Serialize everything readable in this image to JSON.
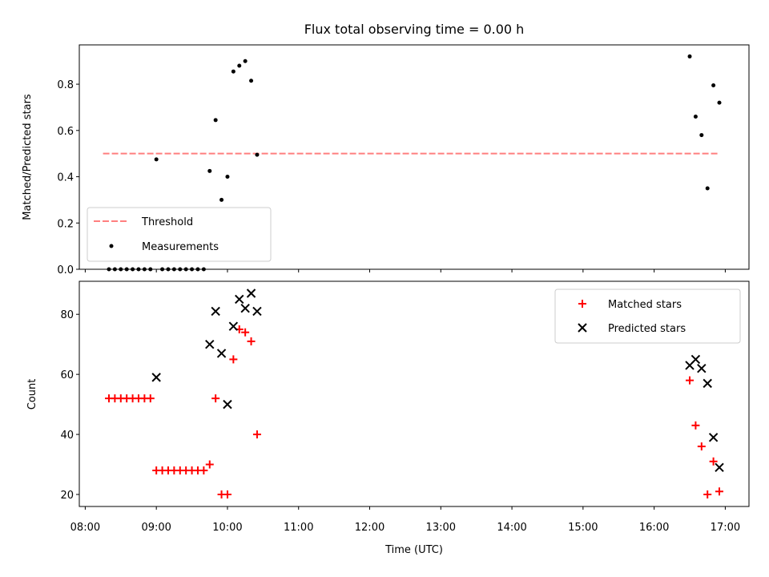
{
  "chart_data": [
    {
      "type": "scatter",
      "title": "Flux total observing time = 0.00 h",
      "xlabel": "",
      "ylabel": "Matched/Predicted stars",
      "xlim": [
        "07:55",
        "17:20"
      ],
      "ylim": [
        0,
        0.97
      ],
      "yticks": [
        0.0,
        0.2,
        0.4,
        0.6,
        0.8
      ],
      "ytick_labels": [
        "0.0",
        "0.2",
        "0.4",
        "0.6",
        "0.8"
      ],
      "grid": false,
      "legend_position": "lower-left",
      "threshold": {
        "name": "Threshold",
        "y": 0.5,
        "x_range": [
          "08:15",
          "16:55"
        ],
        "color": "#ff7f7f",
        "style": "dashed"
      },
      "series": [
        {
          "name": "Measurements",
          "color": "#000000",
          "marker": "dot",
          "points": [
            [
              "08:20",
              0
            ],
            [
              "08:25",
              0
            ],
            [
              "08:30",
              0
            ],
            [
              "08:35",
              0
            ],
            [
              "08:40",
              0
            ],
            [
              "08:45",
              0
            ],
            [
              "08:50",
              0
            ],
            [
              "08:55",
              0
            ],
            [
              "09:00",
              0.475
            ],
            [
              "09:05",
              0
            ],
            [
              "09:10",
              0
            ],
            [
              "09:15",
              0
            ],
            [
              "09:20",
              0
            ],
            [
              "09:25",
              0
            ],
            [
              "09:30",
              0
            ],
            [
              "09:35",
              0
            ],
            [
              "09:40",
              0
            ],
            [
              "09:45",
              0.425
            ],
            [
              "09:50",
              0.645
            ],
            [
              "09:55",
              0.3
            ],
            [
              "10:00",
              0.4
            ],
            [
              "10:05",
              0.855
            ],
            [
              "10:10",
              0.88
            ],
            [
              "10:15",
              0.9
            ],
            [
              "10:20",
              0.815
            ],
            [
              "10:25",
              0.495
            ],
            [
              "16:30",
              0.92
            ],
            [
              "16:35",
              0.66
            ],
            [
              "16:40",
              0.58
            ],
            [
              "16:45",
              0.35
            ],
            [
              "16:50",
              0.795
            ],
            [
              "16:55",
              0.72
            ]
          ]
        }
      ]
    },
    {
      "type": "scatter",
      "title": "",
      "xlabel": "Time (UTC)",
      "ylabel": "Count",
      "xlim": [
        "07:55",
        "17:20"
      ],
      "ylim": [
        16,
        91
      ],
      "yticks": [
        20,
        40,
        60,
        80
      ],
      "xticks": [
        "08:00",
        "09:00",
        "10:00",
        "11:00",
        "12:00",
        "13:00",
        "14:00",
        "15:00",
        "16:00",
        "17:00"
      ],
      "grid": false,
      "legend_position": "upper-right",
      "series": [
        {
          "name": "Matched stars",
          "color": "#ff0000",
          "marker": "plus",
          "points": [
            [
              "08:20",
              52
            ],
            [
              "08:25",
              52
            ],
            [
              "08:30",
              52
            ],
            [
              "08:35",
              52
            ],
            [
              "08:40",
              52
            ],
            [
              "08:45",
              52
            ],
            [
              "08:50",
              52
            ],
            [
              "08:55",
              52
            ],
            [
              "09:00",
              28
            ],
            [
              "09:05",
              28
            ],
            [
              "09:10",
              28
            ],
            [
              "09:15",
              28
            ],
            [
              "09:20",
              28
            ],
            [
              "09:25",
              28
            ],
            [
              "09:30",
              28
            ],
            [
              "09:35",
              28
            ],
            [
              "09:40",
              28
            ],
            [
              "09:45",
              30
            ],
            [
              "09:50",
              52
            ],
            [
              "09:55",
              20
            ],
            [
              "10:00",
              20
            ],
            [
              "10:05",
              65
            ],
            [
              "10:10",
              75
            ],
            [
              "10:15",
              74
            ],
            [
              "10:20",
              71
            ],
            [
              "10:25",
              40
            ],
            [
              "16:30",
              58
            ],
            [
              "16:35",
              43
            ],
            [
              "16:40",
              36
            ],
            [
              "16:45",
              20
            ],
            [
              "16:50",
              31
            ],
            [
              "16:55",
              21
            ]
          ]
        },
        {
          "name": "Predicted stars",
          "color": "#000000",
          "marker": "x",
          "points": [
            [
              "09:00",
              59
            ],
            [
              "09:45",
              70
            ],
            [
              "09:50",
              81
            ],
            [
              "09:55",
              67
            ],
            [
              "10:00",
              50
            ],
            [
              "10:05",
              76
            ],
            [
              "10:10",
              85
            ],
            [
              "10:15",
              82
            ],
            [
              "10:20",
              87
            ],
            [
              "10:25",
              81
            ],
            [
              "16:30",
              63
            ],
            [
              "16:35",
              65
            ],
            [
              "16:40",
              62
            ],
            [
              "16:45",
              57
            ],
            [
              "16:50",
              39
            ],
            [
              "16:55",
              29
            ]
          ]
        }
      ]
    }
  ]
}
